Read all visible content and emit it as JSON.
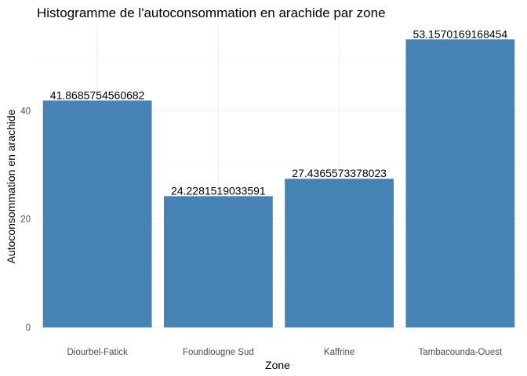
{
  "chart_data": {
    "type": "bar",
    "title": "Histogramme de l'autoconsommation en arachide par zone",
    "xlabel": "Zone",
    "ylabel": "Autoconsommation en arachide",
    "categories": [
      "Diourbel-Fatick",
      "Foundiougne Sud",
      "Kaffrine",
      "Tambacounda-Ouest"
    ],
    "values": [
      41.8685754560682,
      24.2281519033591,
      27.4365573378023,
      53.1570169168454
    ],
    "value_labels": [
      "41.8685754560682",
      "24.2281519033591",
      "27.4365573378023",
      "53.1570169168454"
    ],
    "y_ticks": [
      0,
      20,
      40
    ],
    "ylim": [
      0,
      55.8
    ],
    "grid": true,
    "legend": "none",
    "bar_color": "#4682B4"
  }
}
